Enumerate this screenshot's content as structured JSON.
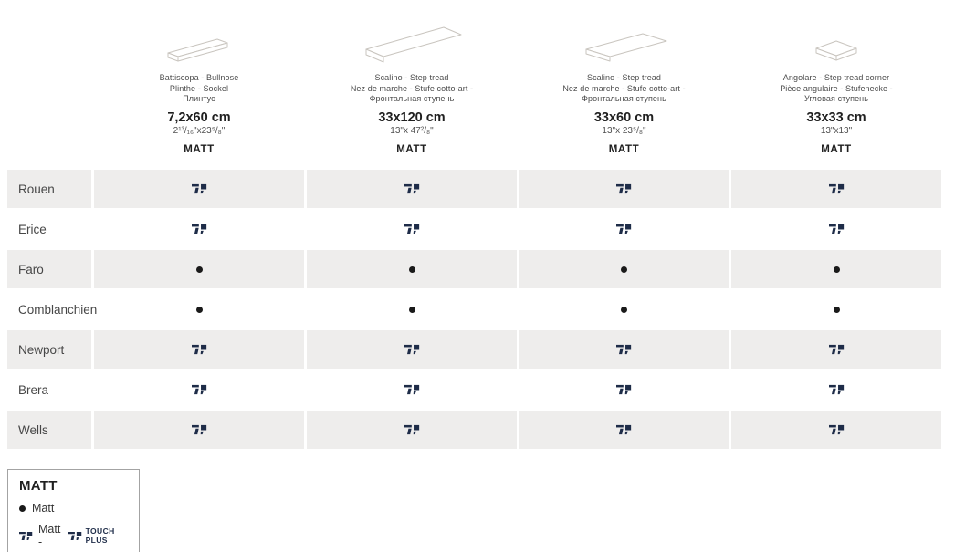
{
  "columns": [
    {
      "names": [
        "Battiscopa - Bullnose",
        "Plinthe - Sockel",
        "Плинтус"
      ],
      "size_cm": "7,2x60 cm",
      "size_in": "2¹³/₁₆\"x23⁵/₈\"",
      "finish": "MATT",
      "icon": "skirting-drawing"
    },
    {
      "names": [
        "Scalino - Step tread",
        "Nez de marche - Stufe cotto-art -",
        "Фронтальная ступень"
      ],
      "size_cm": "33x120 cm",
      "size_in": "13\"x 47²/₈\"",
      "finish": "MATT",
      "icon": "step-tread-long-drawing"
    },
    {
      "names": [
        "Scalino - Step tread",
        "Nez de marche - Stufe cotto-art -",
        "Фронтальная ступень"
      ],
      "size_cm": "33x60 cm",
      "size_in": "13\"x 23⁵/₈\"",
      "finish": "MATT",
      "icon": "step-tread-drawing"
    },
    {
      "names": [
        "Angolare - Step tread corner",
        "Pièce angulaire - Stufenecke -",
        "Угловая ступень"
      ],
      "size_cm": "33x33 cm",
      "size_in": "13\"x13\"",
      "finish": "MATT",
      "icon": "corner-tile-drawing"
    }
  ],
  "table": {
    "rows": [
      {
        "label": "Rouen",
        "cells": [
          "touch",
          "touch",
          "touch",
          "touch"
        ]
      },
      {
        "label": "Erice",
        "cells": [
          "touch",
          "touch",
          "touch",
          "touch"
        ]
      },
      {
        "label": "Faro",
        "cells": [
          "dot",
          "dot",
          "dot",
          "dot"
        ]
      },
      {
        "label": "Comblanchien",
        "cells": [
          "dot",
          "dot",
          "dot",
          "dot"
        ]
      },
      {
        "label": "Newport",
        "cells": [
          "touch",
          "touch",
          "touch",
          "touch"
        ]
      },
      {
        "label": "Brera",
        "cells": [
          "touch",
          "touch",
          "touch",
          "touch"
        ]
      },
      {
        "label": "Wells",
        "cells": [
          "touch",
          "touch",
          "touch",
          "touch"
        ]
      }
    ]
  },
  "legend": {
    "title": "MATT",
    "items": [
      {
        "symbol": "dot",
        "label": "Matt"
      },
      {
        "symbol": "touch",
        "label": "Matt -",
        "logo_text": "TOUCH PLUS"
      }
    ]
  },
  "colors": {
    "accent_navy": "#1e2c48",
    "row_shade": "#eeedec",
    "dot": "#1a1a1a",
    "drawing_stroke": "#c9c5bf"
  }
}
